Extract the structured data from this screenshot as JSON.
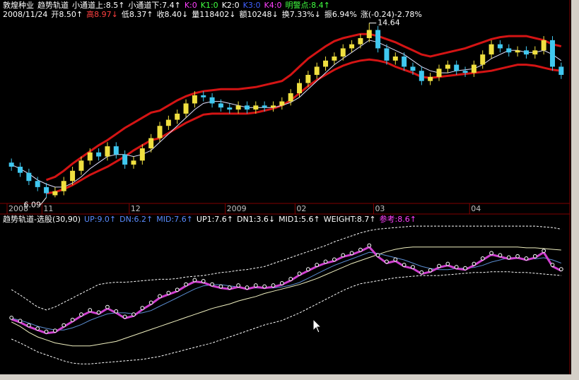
{
  "header": {
    "row1": [
      {
        "text": "敦煌种业",
        "color": "#ffffff"
      },
      {
        "text": "趋势轨道",
        "color": "#ffffff"
      },
      {
        "text": "小通道上:8.5↑",
        "color": "#ffffff"
      },
      {
        "text": "小通道下:7.4↑",
        "color": "#ffffff"
      },
      {
        "text": "K:0",
        "color": "#ff40ff"
      },
      {
        "text": "K1:0",
        "color": "#40ff40"
      },
      {
        "text": "K2:0",
        "color": "#ffffff"
      },
      {
        "text": "K3:0",
        "color": "#4060ff"
      },
      {
        "text": "K4:0",
        "color": "#ff40ff"
      },
      {
        "text": "明警点:8.4↑",
        "color": "#40ff40"
      }
    ],
    "row2": [
      {
        "text": "2008/11/24",
        "color": "#ffffff"
      },
      {
        "text": "开8.50↑",
        "color": "#ffffff"
      },
      {
        "text": "高8.97↓",
        "color": "#ff4040"
      },
      {
        "text": "低8.37↑",
        "color": "#ffffff"
      },
      {
        "text": "收8.40↓",
        "color": "#ffffff"
      },
      {
        "text": "量118402↓",
        "color": "#ffffff"
      },
      {
        "text": "额10248↓",
        "color": "#ffffff"
      },
      {
        "text": "换7.33%↓",
        "color": "#ffffff"
      },
      {
        "text": "振6.94%",
        "color": "#ffffff"
      },
      {
        "text": "涨(-0.24)-2.78%",
        "color": "#ffffff"
      }
    ]
  },
  "chart_data": [
    {
      "type": "candlestick",
      "up_color": "#f0e040",
      "down_color": "#40c8f0",
      "ylim": [
        5.8,
        14.8
      ],
      "categories": [
        "2008",
        null,
        null,
        null,
        "11",
        null,
        null,
        null,
        null,
        null,
        null,
        null,
        null,
        null,
        "12",
        null,
        null,
        null,
        null,
        null,
        null,
        null,
        null,
        null,
        null,
        "2009",
        null,
        null,
        null,
        null,
        null,
        null,
        null,
        "02",
        null,
        null,
        null,
        null,
        null,
        null,
        null,
        null,
        "03",
        null,
        null,
        null,
        null,
        null,
        null,
        null,
        null,
        null,
        null,
        "04",
        null,
        null,
        null,
        null,
        null,
        null,
        null,
        null,
        null,
        null
      ],
      "open": [
        7.8,
        7.6,
        7.3,
        6.9,
        6.6,
        6.2,
        6.4,
        6.9,
        7.4,
        7.9,
        8.3,
        8.1,
        8.6,
        8.2,
        7.7,
        7.9,
        8.5,
        9.0,
        9.6,
        9.9,
        10.2,
        10.7,
        11.1,
        11.0,
        10.7,
        10.5,
        10.4,
        10.6,
        10.4,
        10.6,
        10.5,
        10.6,
        10.8,
        11.2,
        11.7,
        12.1,
        12.5,
        12.8,
        13.0,
        13.4,
        13.6,
        13.9,
        14.3,
        13.4,
        12.8,
        13.0,
        12.5,
        12.3,
        11.8,
        12.0,
        12.4,
        12.6,
        12.3,
        12.2,
        12.6,
        13.1,
        13.6,
        13.4,
        13.2,
        13.3,
        13.1,
        13.3,
        13.8,
        12.5
      ],
      "high": [
        8.0,
        7.8,
        7.5,
        7.1,
        6.8,
        6.6,
        7.1,
        7.6,
        8.1,
        8.5,
        8.5,
        8.8,
        8.8,
        8.4,
        8.1,
        8.7,
        9.2,
        9.8,
        10.1,
        10.4,
        10.9,
        11.3,
        11.3,
        11.2,
        10.9,
        10.7,
        10.8,
        10.8,
        10.8,
        10.8,
        10.8,
        11.0,
        11.4,
        11.9,
        12.3,
        12.7,
        13.0,
        13.2,
        13.6,
        13.8,
        14.1,
        14.64,
        14.5,
        13.6,
        13.2,
        13.2,
        12.7,
        12.5,
        12.2,
        12.6,
        12.8,
        12.8,
        12.5,
        12.8,
        13.3,
        13.8,
        13.8,
        13.6,
        13.5,
        13.5,
        13.5,
        14.0,
        14.0,
        12.7
      ],
      "low": [
        7.4,
        7.1,
        6.7,
        6.4,
        6.09,
        6.1,
        6.2,
        6.7,
        7.2,
        7.7,
        7.9,
        7.9,
        8.0,
        7.5,
        7.5,
        7.7,
        8.3,
        8.8,
        9.4,
        9.7,
        10.0,
        10.5,
        10.8,
        10.5,
        10.3,
        10.2,
        10.2,
        10.2,
        10.2,
        10.3,
        10.3,
        10.4,
        10.6,
        11.0,
        11.5,
        11.9,
        12.3,
        12.6,
        12.8,
        13.2,
        13.4,
        13.7,
        13.2,
        12.6,
        12.6,
        12.3,
        12.1,
        11.6,
        11.6,
        11.8,
        12.2,
        12.1,
        12.0,
        12.0,
        12.4,
        12.9,
        13.2,
        13.0,
        13.0,
        12.9,
        12.9,
        13.1,
        12.3,
        11.9
      ],
      "close": [
        7.6,
        7.3,
        6.9,
        6.6,
        6.3,
        6.4,
        6.9,
        7.4,
        7.9,
        8.3,
        8.1,
        8.6,
        8.2,
        7.7,
        7.9,
        8.5,
        9.0,
        9.6,
        9.9,
        10.2,
        10.7,
        11.1,
        11.0,
        10.7,
        10.5,
        10.4,
        10.6,
        10.4,
        10.6,
        10.5,
        10.6,
        10.8,
        11.2,
        11.7,
        12.1,
        12.5,
        12.8,
        13.0,
        13.4,
        13.6,
        13.9,
        14.3,
        13.4,
        12.8,
        13.0,
        12.5,
        12.3,
        11.8,
        12.0,
        12.4,
        12.6,
        12.3,
        12.2,
        12.6,
        13.1,
        13.6,
        13.4,
        13.2,
        13.3,
        13.1,
        13.3,
        13.8,
        12.5,
        12.1
      ],
      "series": [
        {
          "color": "#d41414",
          "width": 3,
          "values": [
            null,
            null,
            null,
            null,
            6.95,
            7.1,
            7.4,
            7.75,
            8.05,
            8.35,
            8.65,
            8.9,
            9.2,
            9.5,
            9.75,
            10.0,
            10.25,
            10.35,
            10.6,
            10.85,
            11.05,
            11.2,
            11.3,
            11.35,
            11.4,
            11.4,
            11.4,
            11.45,
            11.5,
            11.6,
            11.7,
            11.8,
            12.1,
            12.5,
            12.9,
            13.2,
            13.5,
            13.75,
            13.9,
            14.0,
            14.1,
            14.1,
            14.0,
            13.85,
            13.7,
            13.5,
            13.3,
            13.1,
            13.0,
            13.1,
            13.2,
            13.3,
            13.4,
            13.55,
            13.7,
            13.85,
            13.95,
            14.0,
            14.0,
            14.0,
            13.9,
            13.8,
            13.6,
            13.5
          ]
        },
        {
          "color": "#d41414",
          "width": 3,
          "values": [
            null,
            null,
            null,
            null,
            6.3,
            6.35,
            6.5,
            6.7,
            6.95,
            7.2,
            7.4,
            7.6,
            7.85,
            8.1,
            8.4,
            8.65,
            8.9,
            9.0,
            9.25,
            9.5,
            9.75,
            9.95,
            10.15,
            10.2,
            10.2,
            10.2,
            10.2,
            10.2,
            10.25,
            10.35,
            10.45,
            10.6,
            10.85,
            11.2,
            11.55,
            11.85,
            12.1,
            12.35,
            12.55,
            12.7,
            12.8,
            12.85,
            12.8,
            12.7,
            12.5,
            12.35,
            12.2,
            12.0,
            11.95,
            12.0,
            12.05,
            12.1,
            12.15,
            12.2,
            12.25,
            12.3,
            12.4,
            12.5,
            12.6,
            12.6,
            12.55,
            12.45,
            12.35,
            12.3
          ]
        },
        {
          "color": "#e0e0ff",
          "width": 1,
          "values": [
            7.7,
            7.5,
            7.25,
            6.95,
            6.75,
            6.6,
            6.6,
            6.8,
            7.1,
            7.5,
            7.8,
            8.1,
            8.2,
            8.2,
            8.1,
            8.2,
            8.4,
            8.8,
            9.2,
            9.6,
            10.0,
            10.4,
            10.7,
            10.8,
            10.8,
            10.7,
            10.6,
            10.5,
            10.5,
            10.5,
            10.5,
            10.6,
            10.75,
            11.0,
            11.4,
            11.8,
            12.2,
            12.6,
            12.9,
            13.2,
            13.5,
            13.8,
            13.7,
            13.5,
            13.3,
            13.1,
            12.8,
            12.5,
            12.3,
            12.2,
            12.2,
            12.3,
            12.35,
            12.4,
            12.6,
            12.9,
            13.1,
            13.3,
            13.3,
            13.2,
            13.2,
            13.3,
            13.1,
            12.8
          ]
        }
      ]
    },
    {
      "type": "line",
      "ylim": [
        0,
        10
      ],
      "legend": [
        {
          "text": "趋势轨道-选股(30,90)",
          "color": "#ffffff"
        },
        {
          "text": "UP:9.0↑",
          "color": "#5a8cff"
        },
        {
          "text": "DN:6.2↑",
          "color": "#5a8cff"
        },
        {
          "text": "MID:7.6↑",
          "color": "#5a8cff"
        },
        {
          "text": "UP1:7.6↑",
          "color": "#ffffff"
        },
        {
          "text": "DN1:3.6↓",
          "color": "#ffffff"
        },
        {
          "text": "MID1:5.6↑",
          "color": "#ffffff"
        },
        {
          "text": "WEIGHT:8.7↑",
          "color": "#ffffff"
        },
        {
          "text": "参考:8.6↑",
          "color": "#ff40ff"
        }
      ],
      "series": [
        {
          "color": "#ffffff",
          "style": "dashed",
          "values": [
            5.66,
            5.3,
            4.9,
            4.5,
            4.3,
            4.5,
            4.8,
            5.1,
            5.4,
            5.7,
            6.0,
            6.1,
            6.15,
            6.15,
            6.2,
            6.25,
            6.3,
            6.35,
            6.35,
            6.4,
            6.5,
            6.55,
            6.6,
            6.7,
            6.8,
            6.85,
            6.95,
            7.0,
            7.1,
            7.2,
            7.4,
            7.6,
            7.8,
            8.0,
            8.2,
            8.4,
            8.6,
            8.85,
            9.05,
            9.25,
            9.45,
            9.6,
            9.7,
            9.75,
            9.8,
            9.85,
            9.9,
            9.9,
            9.9,
            9.9,
            9.9,
            9.9,
            9.9,
            9.9,
            9.9,
            9.9,
            9.9,
            9.9,
            9.9,
            9.9,
            9.9,
            9.85,
            9.8,
            9.7
          ]
        },
        {
          "color": "#ffffff",
          "style": "dashed",
          "values": [
            2.36,
            2.1,
            1.8,
            1.5,
            1.3,
            1.1,
            0.9,
            0.75,
            0.7,
            0.7,
            0.75,
            0.8,
            0.85,
            0.9,
            0.95,
            1.0,
            1.1,
            1.2,
            1.35,
            1.5,
            1.65,
            1.8,
            1.95,
            2.1,
            2.3,
            2.5,
            2.7,
            2.9,
            3.1,
            3.3,
            3.45,
            3.6,
            3.85,
            4.1,
            4.4,
            4.7,
            5.0,
            5.3,
            5.6,
            5.85,
            6.05,
            6.15,
            6.25,
            6.35,
            6.45,
            6.5,
            6.55,
            6.6,
            6.6,
            6.6,
            6.65,
            6.7,
            6.75,
            6.8,
            6.8,
            6.85,
            6.85,
            6.85,
            6.8,
            6.8,
            6.75,
            6.7,
            6.65,
            6.6
          ]
        },
        {
          "color": "#f0f0c0",
          "style": "solid",
          "values": [
            3.5,
            3.2,
            2.8,
            2.5,
            2.3,
            2.1,
            2.0,
            1.9,
            1.9,
            1.9,
            2.0,
            2.1,
            2.2,
            2.4,
            2.6,
            2.8,
            3.0,
            3.2,
            3.4,
            3.6,
            3.8,
            4.0,
            4.2,
            4.4,
            4.55,
            4.7,
            4.9,
            5.05,
            5.2,
            5.4,
            5.55,
            5.7,
            5.85,
            6.0,
            6.2,
            6.4,
            6.65,
            6.9,
            7.15,
            7.4,
            7.6,
            7.8,
            8.0,
            8.2,
            8.35,
            8.45,
            8.5,
            8.5,
            8.5,
            8.5,
            8.5,
            8.5,
            8.5,
            8.5,
            8.5,
            8.5,
            8.5,
            8.5,
            8.5,
            8.45,
            8.45,
            8.4,
            8.35,
            8.3
          ]
        },
        {
          "color": "#5a8cd0",
          "style": "solid",
          "values": [
            3.75,
            3.61,
            3.43,
            3.21,
            3.07,
            2.96,
            2.96,
            3.11,
            3.32,
            3.61,
            3.83,
            4.04,
            4.11,
            4.11,
            4.04,
            4.11,
            4.26,
            4.55,
            4.83,
            5.12,
            5.41,
            5.7,
            5.91,
            5.99,
            5.99,
            5.91,
            5.84,
            5.77,
            5.77,
            5.77,
            5.77,
            5.84,
            5.95,
            6.13,
            6.42,
            6.71,
            7.0,
            7.28,
            7.5,
            7.71,
            7.93,
            8.15,
            8.07,
            7.93,
            7.79,
            7.64,
            7.43,
            7.21,
            7.07,
            6.99,
            6.99,
            7.07,
            7.1,
            7.14,
            7.28,
            7.5,
            7.64,
            7.79,
            7.79,
            7.71,
            7.71,
            7.79,
            7.64,
            7.43
          ]
        },
        {
          "color": "#d040d0",
          "style": "thick",
          "values": [
            3.68,
            3.47,
            3.18,
            2.96,
            2.75,
            2.82,
            3.18,
            3.54,
            3.9,
            4.19,
            4.04,
            4.4,
            4.11,
            3.75,
            3.9,
            4.33,
            4.69,
            5.12,
            5.34,
            5.55,
            5.91,
            6.2,
            6.13,
            5.91,
            5.77,
            5.7,
            5.84,
            5.7,
            5.84,
            5.77,
            5.84,
            5.99,
            6.27,
            6.63,
            6.92,
            7.21,
            7.43,
            7.57,
            7.86,
            8.0,
            8.22,
            8.51,
            7.86,
            7.43,
            7.57,
            7.21,
            7.07,
            6.71,
            6.85,
            7.14,
            7.28,
            7.07,
            6.99,
            7.28,
            7.64,
            8.0,
            7.86,
            7.71,
            7.79,
            7.64,
            7.79,
            8.15,
            7.21,
            6.92
          ]
        },
        {
          "color": "#ffffff",
          "style": "dots",
          "values": [
            3.78,
            3.57,
            3.28,
            3.06,
            2.85,
            2.92,
            3.28,
            3.64,
            4.0,
            4.29,
            4.14,
            4.5,
            4.21,
            3.85,
            4.0,
            4.43,
            4.79,
            5.22,
            5.44,
            5.65,
            6.01,
            6.3,
            6.23,
            6.01,
            5.87,
            5.8,
            5.94,
            5.8,
            5.94,
            5.87,
            5.94,
            6.09,
            6.37,
            6.73,
            7.02,
            7.31,
            7.53,
            7.67,
            7.96,
            8.1,
            8.32,
            8.61,
            7.96,
            7.53,
            7.67,
            7.31,
            7.17,
            6.81,
            6.95,
            7.24,
            7.38,
            7.17,
            7.09,
            7.38,
            7.74,
            8.1,
            7.96,
            7.81,
            7.89,
            7.74,
            7.89,
            8.25,
            7.31,
            7.02
          ]
        }
      ]
    }
  ]
}
